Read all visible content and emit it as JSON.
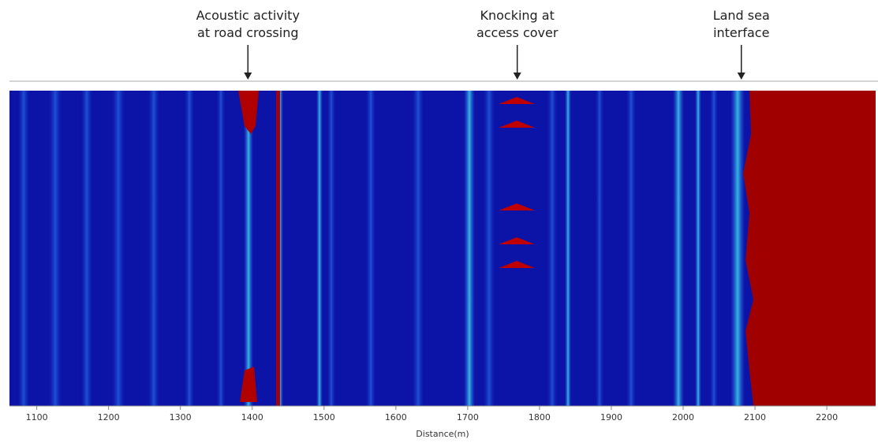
{
  "chart_data": {
    "type": "heatmap",
    "xlabel": "Distance(m)",
    "xlim": [
      1062,
      2268
    ],
    "xticks": [
      1100,
      1200,
      1300,
      1400,
      1500,
      1600,
      1700,
      1800,
      1900,
      2000,
      2100,
      2200
    ],
    "annotations": [
      {
        "lines": [
          "Acoustic activity",
          "at road crossing"
        ],
        "x": 1394
      },
      {
        "lines": [
          "Knocking at",
          "access cover"
        ],
        "x": 1769
      },
      {
        "lines": [
          "Land sea",
          "interface"
        ],
        "x": 2081
      }
    ]
  }
}
